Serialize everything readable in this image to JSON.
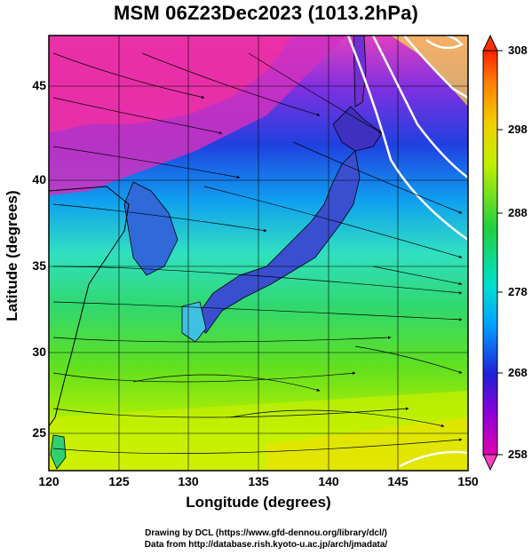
{
  "title": "MSM 06Z23Dec2023 (1013.2hPa)",
  "xaxis": {
    "label": "Longitude (degrees)",
    "ticks": [
      "120",
      "125",
      "130",
      "135",
      "140",
      "145",
      "150"
    ],
    "range": [
      120,
      150
    ]
  },
  "yaxis": {
    "label": "Latitude  (degrees)",
    "ticks": [
      "45",
      "40",
      "35",
      "30",
      "25"
    ],
    "range": [
      22.4,
      48
    ]
  },
  "colorbar": {
    "min": 258,
    "max": 308,
    "ticks": [
      "308",
      "298",
      "288",
      "278",
      "268",
      "258"
    ],
    "type": "temperature"
  },
  "credits": {
    "line1": "Drawing by DCL (https://www.gfd-dennou.org/library/dcl/)",
    "line2": "Data from http://database.rish.kyoto-u.ac.jp/arch/jmadata/"
  }
}
